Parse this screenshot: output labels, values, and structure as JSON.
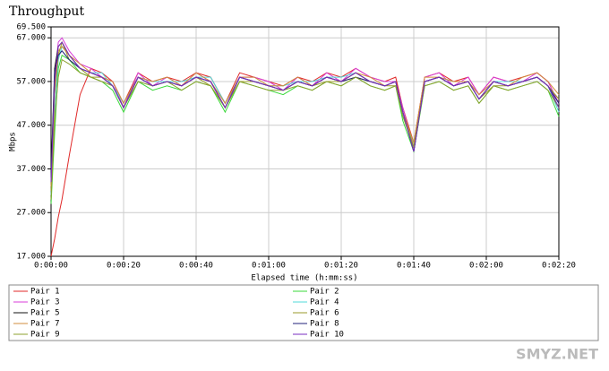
{
  "chart_data": {
    "type": "line",
    "title": "Throughput",
    "y_label": "Mbps",
    "x_label": "Elapsed time (h:mm:ss)",
    "watermark": "SMYZ.NET",
    "xlim": [
      0,
      140
    ],
    "ylim": [
      17,
      69.5
    ],
    "grid": true,
    "xticks": [
      {
        "value": 0,
        "label": "0:00:00"
      },
      {
        "value": 20,
        "label": "0:00:20"
      },
      {
        "value": 40,
        "label": "0:00:40"
      },
      {
        "value": 60,
        "label": "0:01:00"
      },
      {
        "value": 80,
        "label": "0:01:20"
      },
      {
        "value": 100,
        "label": "0:01:40"
      },
      {
        "value": 120,
        "label": "0:02:00"
      },
      {
        "value": 140,
        "label": "0:02:20"
      }
    ],
    "yticks": [
      {
        "value": 17,
        "label": "17.000"
      },
      {
        "value": 27,
        "label": "27.000"
      },
      {
        "value": 37,
        "label": "37.000"
      },
      {
        "value": 47,
        "label": "47.000"
      },
      {
        "value": 57,
        "label": "57.000"
      },
      {
        "value": 67,
        "label": "67.000"
      },
      {
        "value": 69.5,
        "label": "69.500"
      }
    ],
    "x": [
      0,
      1,
      2,
      3,
      5,
      8,
      11,
      14,
      17,
      20,
      24,
      28,
      32,
      36,
      40,
      44,
      48,
      52,
      56,
      60,
      64,
      68,
      72,
      76,
      80,
      84,
      88,
      92,
      95,
      97,
      100,
      103,
      107,
      111,
      115,
      118,
      122,
      126,
      130,
      134,
      137,
      140
    ],
    "series": [
      {
        "name": "Pair 1",
        "color": "#e02828",
        "values": [
          17,
          21,
          26,
          30,
          40,
          54,
          60,
          59,
          57,
          52,
          59,
          57,
          58,
          57,
          59,
          58,
          52,
          59,
          58,
          57,
          56,
          58,
          57,
          59,
          58,
          60,
          58,
          57,
          58,
          51,
          43,
          58,
          59,
          57,
          58,
          54,
          58,
          57,
          58,
          59,
          57,
          52
        ]
      },
      {
        "name": "Pair 2",
        "color": "#3ad83a",
        "values": [
          29,
          45,
          60,
          63,
          62,
          59,
          58,
          57,
          55,
          50,
          57,
          55,
          56,
          55,
          57,
          56,
          50,
          57,
          56,
          55,
          54,
          56,
          55,
          57,
          56,
          58,
          56,
          55,
          56,
          48,
          41,
          56,
          57,
          55,
          56,
          52,
          56,
          55,
          56,
          57,
          55,
          49
        ]
      },
      {
        "name": "Pair 3",
        "color": "#d83cd8",
        "values": [
          34,
          58,
          66,
          67,
          64,
          61,
          60,
          58,
          57,
          51,
          59,
          56,
          58,
          56,
          59,
          57,
          51,
          58,
          58,
          57,
          55,
          58,
          56,
          59,
          57,
          60,
          58,
          57,
          57,
          51,
          42,
          58,
          59,
          56,
          58,
          54,
          58,
          57,
          57,
          59,
          57,
          52
        ]
      },
      {
        "name": "Pair 4",
        "color": "#50d8d8",
        "values": [
          31,
          50,
          62,
          65,
          63,
          60,
          59,
          59,
          56,
          52,
          58,
          57,
          57,
          57,
          58,
          58,
          52,
          58,
          57,
          56,
          56,
          57,
          57,
          58,
          58,
          59,
          57,
          56,
          57,
          49,
          43,
          57,
          58,
          57,
          57,
          53,
          57,
          57,
          57,
          58,
          56,
          50
        ]
      },
      {
        "name": "Pair 5",
        "color": "#111111",
        "values": [
          36,
          60,
          65,
          66,
          63,
          60,
          59,
          58,
          56,
          51,
          58,
          56,
          57,
          56,
          58,
          57,
          51,
          58,
          57,
          56,
          55,
          57,
          56,
          58,
          57,
          59,
          57,
          56,
          57,
          50,
          41,
          57,
          58,
          56,
          57,
          53,
          57,
          56,
          57,
          58,
          56,
          51
        ]
      },
      {
        "name": "Pair 6",
        "color": "#9a9a2a",
        "values": [
          32,
          54,
          63,
          66,
          62,
          60,
          58,
          58,
          56,
          51,
          58,
          56,
          57,
          56,
          58,
          56,
          51,
          57,
          57,
          56,
          55,
          57,
          56,
          57,
          57,
          58,
          57,
          56,
          56,
          50,
          42,
          57,
          58,
          56,
          57,
          53,
          56,
          56,
          57,
          58,
          56,
          53
        ]
      },
      {
        "name": "Pair 7",
        "color": "#d08c3c",
        "values": [
          33,
          55,
          64,
          65,
          63,
          61,
          59,
          58,
          57,
          52,
          58,
          57,
          58,
          56,
          59,
          57,
          52,
          58,
          58,
          56,
          56,
          58,
          56,
          58,
          57,
          59,
          58,
          56,
          57,
          50,
          43,
          58,
          58,
          57,
          57,
          54,
          57,
          56,
          58,
          59,
          57,
          54
        ]
      },
      {
        "name": "Pair 8",
        "color": "#202078",
        "values": [
          35,
          59,
          63,
          64,
          62,
          60,
          59,
          58,
          56,
          51,
          58,
          56,
          57,
          56,
          58,
          57,
          51,
          58,
          57,
          56,
          55,
          57,
          56,
          58,
          57,
          58,
          57,
          56,
          57,
          50,
          41,
          57,
          58,
          56,
          57,
          53,
          57,
          56,
          57,
          58,
          56,
          52
        ]
      },
      {
        "name": "Pair 9",
        "color": "#8ca02c",
        "values": [
          30,
          48,
          58,
          62,
          61,
          59,
          58,
          57,
          56,
          51,
          57,
          56,
          57,
          55,
          57,
          56,
          51,
          57,
          56,
          55,
          55,
          56,
          55,
          57,
          56,
          58,
          56,
          55,
          56,
          49,
          42,
          56,
          57,
          55,
          56,
          52,
          56,
          55,
          56,
          57,
          55,
          51
        ]
      },
      {
        "name": "Pair 10",
        "color": "#7a2cc0",
        "values": [
          34,
          57,
          65,
          66,
          63,
          60,
          59,
          58,
          56,
          51,
          58,
          56,
          57,
          56,
          58,
          57,
          51,
          58,
          57,
          56,
          55,
          57,
          56,
          58,
          57,
          59,
          57,
          56,
          57,
          50,
          41,
          57,
          58,
          56,
          57,
          53,
          57,
          56,
          57,
          58,
          56,
          51
        ]
      }
    ]
  }
}
